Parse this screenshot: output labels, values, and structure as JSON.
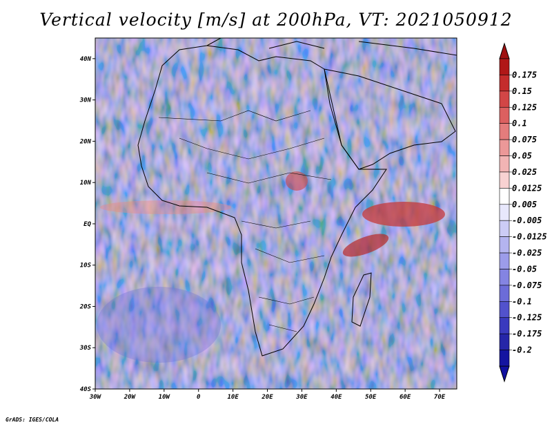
{
  "title": "Vertical velocity [m/s] at 200hPa, VT: 2021050912",
  "credit": "GrADS: IGES/COLA",
  "map": {
    "lon_range": [
      -30,
      75
    ],
    "lat_range": [
      -40,
      45
    ],
    "lat_ticks": [
      {
        "value": 40,
        "label": "40N"
      },
      {
        "value": 30,
        "label": "30N"
      },
      {
        "value": 20,
        "label": "20N"
      },
      {
        "value": 10,
        "label": "10N"
      },
      {
        "value": 0,
        "label": "EQ"
      },
      {
        "value": -10,
        "label": "10S"
      },
      {
        "value": -20,
        "label": "20S"
      },
      {
        "value": -30,
        "label": "30S"
      },
      {
        "value": -40,
        "label": "40S"
      }
    ],
    "lon_ticks": [
      {
        "value": -30,
        "label": "30W"
      },
      {
        "value": -20,
        "label": "20W"
      },
      {
        "value": -10,
        "label": "10W"
      },
      {
        "value": 0,
        "label": "0"
      },
      {
        "value": 10,
        "label": "10E"
      },
      {
        "value": 20,
        "label": "20E"
      },
      {
        "value": 30,
        "label": "30E"
      },
      {
        "value": 40,
        "label": "40E"
      },
      {
        "value": 50,
        "label": "50E"
      },
      {
        "value": 60,
        "label": "60E"
      },
      {
        "value": 70,
        "label": "70E"
      }
    ]
  },
  "colorbar": {
    "labels": [
      "0.175",
      "0.15",
      "0.125",
      "0.1",
      "0.075",
      "0.05",
      "0.025",
      "0.0125",
      "0.005",
      "-0.005",
      "-0.0125",
      "-0.025",
      "-0.05",
      "-0.075",
      "-0.1",
      "-0.125",
      "-0.175",
      "-0.2"
    ],
    "colors": [
      "#b01818",
      "#c42c2c",
      "#d24646",
      "#dc6060",
      "#e47c7c",
      "#ec9898",
      "#f2b4b4",
      "#f8d2d2",
      "#ffffff",
      "#e8e8fc",
      "#ccccf6",
      "#b4b4f0",
      "#9c9cea",
      "#8484e2",
      "#6c6cd8",
      "#5252cc",
      "#3a3abe",
      "#2626a8",
      "#1414a0"
    ],
    "top_color": "#a01010",
    "bottom_color": "#1010a0"
  }
}
